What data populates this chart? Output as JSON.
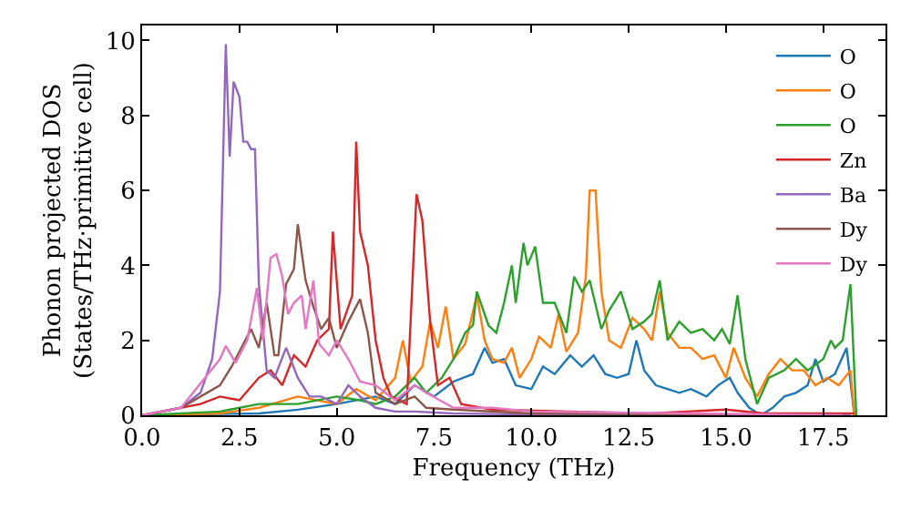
{
  "chart_data": {
    "type": "line",
    "xlabel": "Frequency (THz)",
    "ylabel": "Phonon projected DOS\n(States/THz·primitive cell)",
    "xlim": [
      0,
      19.1
    ],
    "ylim": [
      0,
      10.4
    ],
    "xticks": [
      {
        "value": 0,
        "label": "0.0"
      },
      2.5,
      {
        "value": 5,
        "label": "5.0"
      },
      7.5,
      {
        "value": 10,
        "label": "10.0"
      },
      12.5,
      {
        "value": 15,
        "label": "15.0"
      },
      17.5
    ],
    "yticks": [
      0,
      2,
      4,
      6,
      8,
      10
    ],
    "legend": "top right",
    "marker": "none",
    "line_style": "solid",
    "series": [
      {
        "name": "O",
        "color": "#1f77b4",
        "x": [
          0,
          3,
          4,
          5,
          6,
          6.5,
          7,
          7.5,
          8,
          8.5,
          8.8,
          9,
          9.3,
          9.6,
          10,
          10.3,
          10.6,
          11,
          11.3,
          11.6,
          11.9,
          12.2,
          12.5,
          12.7,
          12.9,
          13.2,
          13.5,
          13.8,
          14.1,
          14.5,
          14.8,
          15.1,
          15.3,
          15.6,
          15.9,
          16.2,
          16.5,
          16.8,
          17.1,
          17.3,
          17.5,
          17.8,
          18.1,
          18.3
        ],
        "values": [
          0,
          0.05,
          0.15,
          0.3,
          0.5,
          0.3,
          0.8,
          0.5,
          0.9,
          1.1,
          1.8,
          1.4,
          1.5,
          0.8,
          0.7,
          1.3,
          1.1,
          1.6,
          1.3,
          1.6,
          1.1,
          1.0,
          1.1,
          2.0,
          1.2,
          0.8,
          0.7,
          0.6,
          0.7,
          0.5,
          0.8,
          1.0,
          0.6,
          0.2,
          0,
          0.2,
          0.5,
          0.6,
          0.8,
          1.5,
          0.9,
          1.1,
          1.8,
          0
        ]
      },
      {
        "name": "O",
        "color": "#ff7f0e",
        "x": [
          0,
          2,
          3,
          4,
          5,
          5.5,
          6,
          6.5,
          6.7,
          6.9,
          7.2,
          7.4,
          7.6,
          7.8,
          8,
          8.3,
          8.6,
          8.8,
          9,
          9.3,
          9.5,
          9.7,
          10,
          10.2,
          10.5,
          10.7,
          10.9,
          11.2,
          11.4,
          11.5,
          11.65,
          11.8,
          12,
          12.3,
          12.6,
          12.9,
          13.1,
          13.3,
          13.5,
          13.8,
          14.1,
          14.4,
          14.7,
          15,
          15.2,
          15.5,
          15.8,
          16.1,
          16.4,
          16.7,
          17,
          17.3,
          17.6,
          17.9,
          18.2,
          18.3
        ],
        "values": [
          0,
          0.05,
          0.2,
          0.5,
          0.3,
          0.7,
          0.4,
          1.0,
          2.0,
          0.9,
          1.3,
          2.5,
          1.8,
          2.9,
          1.5,
          1.9,
          3.2,
          2.0,
          1.5,
          1.4,
          1.8,
          1.0,
          1.5,
          2.1,
          1.8,
          2.7,
          1.7,
          2.2,
          3.7,
          6.0,
          6.0,
          3.3,
          2.0,
          1.8,
          2.6,
          2.3,
          2.0,
          3.3,
          2.2,
          1.8,
          1.8,
          1.5,
          1.6,
          1.0,
          1.8,
          1.0,
          0.5,
          1.1,
          1.5,
          1.2,
          1.2,
          0.8,
          1.0,
          0.8,
          1.2,
          0
        ]
      },
      {
        "name": "O",
        "color": "#2ca02c",
        "x": [
          0,
          2,
          3,
          4,
          5,
          5.6,
          6,
          6.5,
          7,
          7.3,
          7.7,
          8,
          8.3,
          8.5,
          8.6,
          8.9,
          9.1,
          9.3,
          9.5,
          9.6,
          9.8,
          9.9,
          10.1,
          10.3,
          10.6,
          10.9,
          11.1,
          11.3,
          11.5,
          11.8,
          12,
          12.3,
          12.6,
          12.9,
          13.1,
          13.3,
          13.5,
          13.8,
          14.1,
          14.4,
          14.7,
          14.9,
          15.1,
          15.3,
          15.5,
          15.8,
          16.1,
          16.5,
          16.8,
          17.1,
          17.5,
          17.7,
          17.8,
          18,
          18.2,
          18.35
        ],
        "values": [
          0,
          0.1,
          0.3,
          0.3,
          0.5,
          0.4,
          0.3,
          0.5,
          1.0,
          0.6,
          1.0,
          1.5,
          2.2,
          2.4,
          3.3,
          2.4,
          2.2,
          3.0,
          4.0,
          3.0,
          4.6,
          4.0,
          4.5,
          3.0,
          3.0,
          2.2,
          3.7,
          3.3,
          3.6,
          2.3,
          2.8,
          3.3,
          2.3,
          2.5,
          2.7,
          3.6,
          2.0,
          2.5,
          2.2,
          2.3,
          2.0,
          2.3,
          1.9,
          3.2,
          1.5,
          0.3,
          1.0,
          1.2,
          1.5,
          1.2,
          1.5,
          2.0,
          1.8,
          2.0,
          3.5,
          0
        ]
      },
      {
        "name": "Zn",
        "color": "#d62728",
        "x": [
          0,
          1.5,
          2,
          2.5,
          3,
          3.3,
          3.6,
          3.9,
          4.2,
          4.5,
          4.8,
          4.9,
          5.1,
          5.4,
          5.5,
          5.6,
          5.8,
          6,
          6.2,
          6.4,
          6.8,
          7.05,
          7.2,
          7.4,
          7.6,
          7.9,
          8.2,
          9,
          11,
          13,
          15,
          16,
          18.3
        ],
        "values": [
          0,
          0.3,
          0.5,
          0.4,
          1.0,
          1.2,
          0.8,
          1.6,
          1.3,
          2.0,
          2.3,
          4.9,
          2.3,
          3.2,
          7.3,
          4.9,
          4.0,
          2.0,
          1.0,
          0.5,
          0.3,
          5.9,
          5.2,
          2.5,
          0.8,
          1.0,
          0.3,
          0.15,
          0.1,
          0.05,
          0.15,
          0.05,
          0.05
        ]
      },
      {
        "name": "Ba",
        "color": "#9467bd",
        "x": [
          0,
          1,
          1.5,
          1.8,
          2,
          2.15,
          2.25,
          2.35,
          2.5,
          2.6,
          2.7,
          2.8,
          2.9,
          3,
          3.2,
          3.4,
          3.7,
          4,
          4.3,
          4.6,
          5,
          5.3,
          5.6,
          6,
          6.5,
          7,
          8,
          10,
          18.2
        ],
        "values": [
          0,
          0.2,
          0.6,
          1.5,
          3.3,
          9.9,
          6.9,
          8.9,
          8.5,
          7.3,
          7.3,
          7.1,
          7.1,
          3.5,
          1.2,
          1.0,
          1.8,
          1.0,
          0.5,
          0.5,
          0.3,
          0.8,
          0.5,
          0.2,
          0.1,
          0.1,
          0.05,
          0.02,
          0
        ]
      },
      {
        "name": "Dy",
        "color": "#8c564b",
        "x": [
          0,
          1,
          2,
          2.3,
          2.6,
          2.8,
          3,
          3.2,
          3.4,
          3.5,
          3.7,
          3.9,
          4,
          4.2,
          4.4,
          4.6,
          4.8,
          5,
          5.3,
          5.6,
          5.8,
          6,
          6.5,
          7,
          7.3,
          8,
          10,
          18
        ],
        "values": [
          0,
          0.2,
          0.8,
          1.3,
          1.9,
          2.3,
          1.8,
          3.0,
          1.6,
          1.6,
          3.5,
          3.9,
          5.1,
          3.6,
          2.9,
          2.3,
          2.6,
          1.8,
          2.5,
          3.1,
          2.2,
          0.6,
          0.3,
          0.5,
          0.2,
          0.15,
          0.05,
          0
        ]
      },
      {
        "name": "Dy",
        "color": "#e377c2",
        "x": [
          0,
          1,
          2,
          2.15,
          2.4,
          2.7,
          2.95,
          3.1,
          3.3,
          3.45,
          3.6,
          3.75,
          3.9,
          4.1,
          4.2,
          4.4,
          4.55,
          4.8,
          5,
          5.3,
          5.6,
          6,
          6.5,
          7,
          7.3,
          8,
          9,
          10,
          18
        ],
        "values": [
          0,
          0.2,
          1.5,
          1.85,
          1.4,
          2.0,
          3.4,
          2.0,
          4.2,
          4.3,
          3.7,
          2.7,
          3.0,
          3.2,
          2.3,
          3.6,
          1.9,
          1.6,
          2.0,
          1.5,
          0.9,
          0.8,
          0.4,
          0.8,
          0.6,
          0.2,
          0.2,
          0.1,
          0
        ]
      }
    ]
  }
}
